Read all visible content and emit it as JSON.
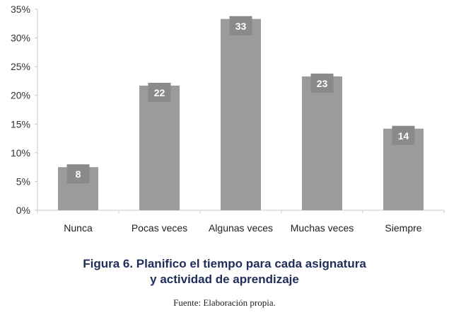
{
  "chart_data": {
    "type": "bar",
    "categories": [
      "Nunca",
      "Pocas veces",
      "Algunas veces",
      "Muchas veces",
      "Siempre"
    ],
    "values": [
      7.5,
      21.7,
      33.3,
      23.3,
      14.2
    ],
    "data_labels": [
      "8",
      "22",
      "33",
      "23",
      "14"
    ],
    "yticks": [
      "0%",
      "5%",
      "10%",
      "15%",
      "20%",
      "25%",
      "30%",
      "35%"
    ],
    "ylim": [
      0,
      35
    ],
    "xlabel": "",
    "ylabel": "",
    "grid": false,
    "bar_color": "#9b9b9b",
    "label_box_color": "#8a8a8a"
  },
  "caption": {
    "title_line1": "Figura 6. Planifico el tiempo para cada asignatura",
    "title_line2": "y actividad de aprendizaje",
    "source": "Fuente: Elaboración propia."
  }
}
